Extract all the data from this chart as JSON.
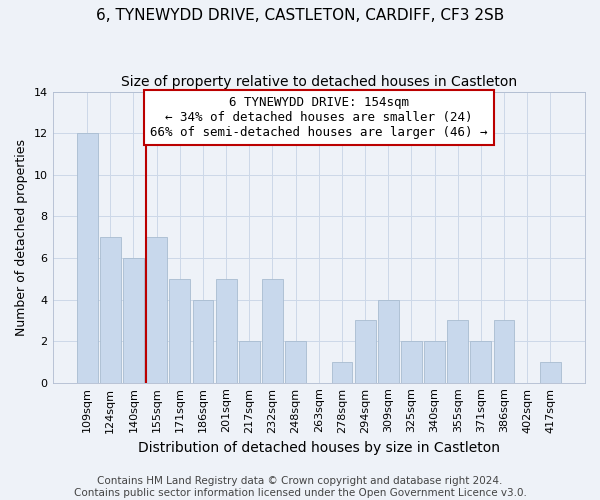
{
  "title": "6, TYNEWYDD DRIVE, CASTLETON, CARDIFF, CF3 2SB",
  "subtitle": "Size of property relative to detached houses in Castleton",
  "xlabel": "Distribution of detached houses by size in Castleton",
  "ylabel": "Number of detached properties",
  "bar_labels": [
    "109sqm",
    "124sqm",
    "140sqm",
    "155sqm",
    "171sqm",
    "186sqm",
    "201sqm",
    "217sqm",
    "232sqm",
    "248sqm",
    "263sqm",
    "278sqm",
    "294sqm",
    "309sqm",
    "325sqm",
    "340sqm",
    "355sqm",
    "371sqm",
    "386sqm",
    "402sqm",
    "417sqm"
  ],
  "bar_heights": [
    12,
    7,
    6,
    7,
    5,
    4,
    5,
    2,
    5,
    2,
    0,
    1,
    3,
    4,
    2,
    2,
    3,
    2,
    3,
    0,
    1
  ],
  "bar_color": "#c8d8ec",
  "bar_edge_color": "#a8bcd0",
  "property_line_index": 3,
  "property_label": "6 TYNEWYDD DRIVE: 154sqm",
  "annotation_line1": "← 34% of detached houses are smaller (24)",
  "annotation_line2": "66% of semi-detached houses are larger (46) →",
  "annotation_box_color": "#ffffff",
  "annotation_box_edge_color": "#bb0000",
  "vline_color": "#bb0000",
  "ylim": [
    0,
    14
  ],
  "yticks": [
    0,
    2,
    4,
    6,
    8,
    10,
    12,
    14
  ],
  "grid_color": "#ccd8e8",
  "bg_color": "#eef2f8",
  "footer_line1": "Contains HM Land Registry data © Crown copyright and database right 2024.",
  "footer_line2": "Contains public sector information licensed under the Open Government Licence v3.0.",
  "title_fontsize": 11,
  "subtitle_fontsize": 10,
  "xlabel_fontsize": 10,
  "ylabel_fontsize": 9,
  "tick_fontsize": 8,
  "annotation_fontsize": 9,
  "footer_fontsize": 7.5
}
